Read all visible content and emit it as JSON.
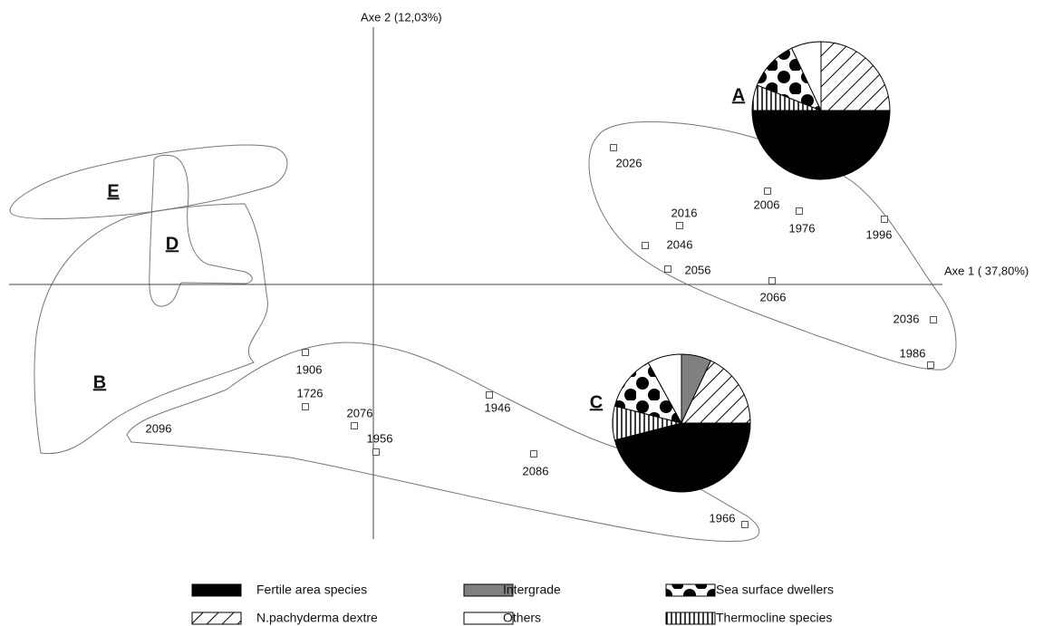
{
  "chart_data": {
    "type": "scatter",
    "x_label": "Axe 1 ( 37,80%)",
    "y_label": "Axe 2  (12,03%)",
    "xlim": [
      -4.02,
      6.28
    ],
    "ylim": [
      -2.81,
      2.84
    ],
    "points": {
      "labels": [
        "2026",
        "2006",
        "1976",
        "1996",
        "2016",
        "2046",
        "2056",
        "2066",
        "2036",
        "1986",
        "1906",
        "1726",
        "2076",
        "1956",
        "1946",
        "2086",
        "1966",
        "2096"
      ],
      "x": [
        2.65,
        4.35,
        4.7,
        5.64,
        3.38,
        3.0,
        3.25,
        4.4,
        6.18,
        6.15,
        -0.75,
        -0.75,
        -0.21,
        0.03,
        1.28,
        1.77,
        4.1,
        -2.37
      ],
      "y": [
        1.51,
        1.03,
        0.81,
        0.72,
        0.65,
        0.43,
        0.17,
        0.04,
        -0.39,
        -0.89,
        -0.75,
        -1.35,
        -1.56,
        -1.85,
        -1.22,
        -1.87,
        -2.65,
        -1.6
      ]
    },
    "groups": [
      "A",
      "B",
      "C",
      "D",
      "E"
    ],
    "pie_categories": [
      {
        "name": "Fertile area species",
        "fill": "black"
      },
      {
        "name": "N.pachyderma dextre",
        "fill": "hatch"
      },
      {
        "name": "Intergrade",
        "fill": "gray"
      },
      {
        "name": "Others",
        "fill": "white"
      },
      {
        "name": "Sea surface dwellers",
        "fill": "dots"
      },
      {
        "name": "Thermocline species",
        "fill": "stripes"
      }
    ],
    "pies": [
      {
        "values": [
          50,
          25,
          0,
          7,
          12,
          6
        ]
      },
      {
        "values": [
          46,
          18,
          7,
          8,
          13,
          8
        ]
      }
    ]
  }
}
